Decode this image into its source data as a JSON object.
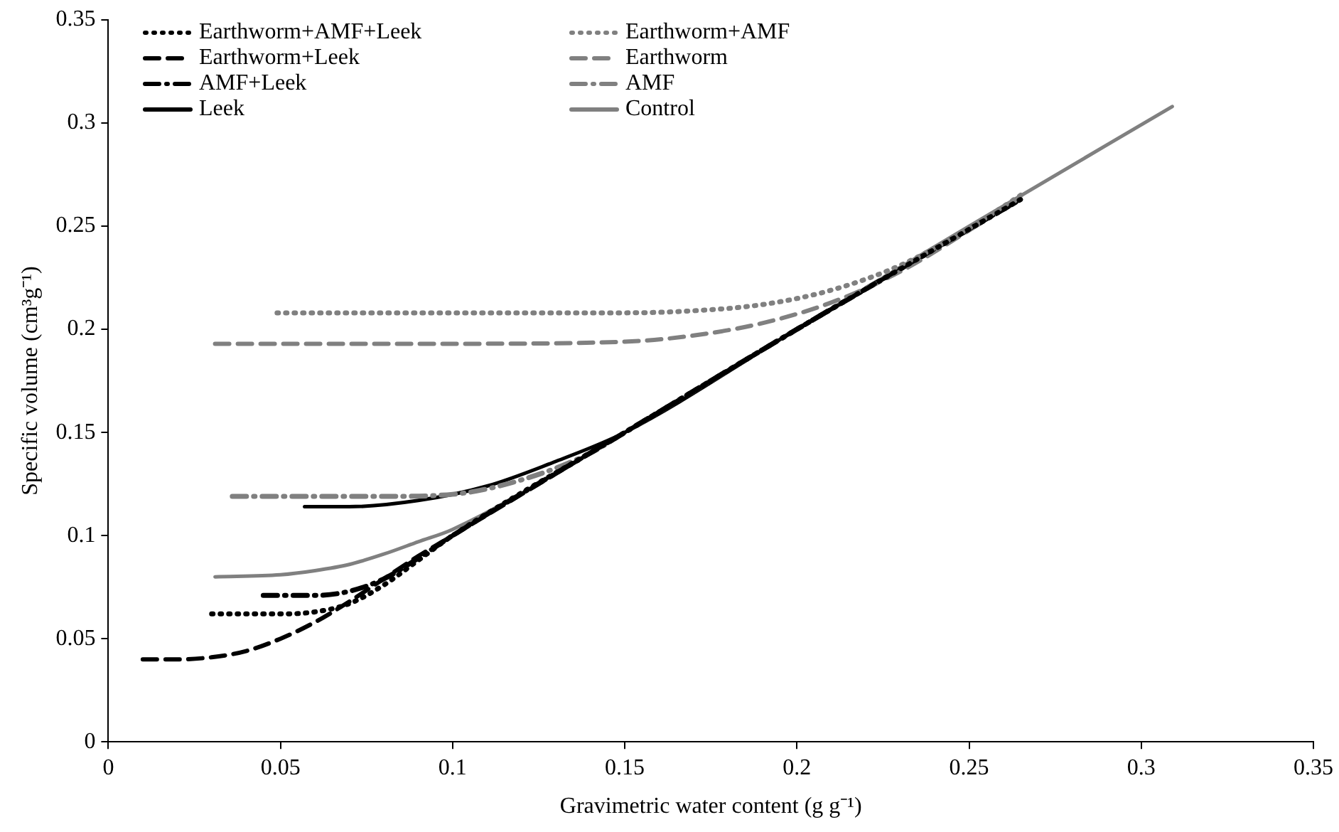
{
  "chart_data": {
    "type": "line",
    "xlabel": "Gravimetric water content (g g⁻¹)",
    "ylabel": "Specific volume (cm³g⁻¹)",
    "xlim": [
      0,
      0.35
    ],
    "ylim": [
      0,
      0.35
    ],
    "xticks": [
      0,
      0.05,
      0.1,
      0.15,
      0.2,
      0.25,
      0.3,
      0.35
    ],
    "yticks": [
      0,
      0.05,
      0.1,
      0.15,
      0.2,
      0.25,
      0.3,
      0.35
    ],
    "grid": false,
    "legend": "top left",
    "marker": "none",
    "series": [
      {
        "name": "Earthworm+AMF+Leek",
        "color": "#000000",
        "line_style": "dotted",
        "x": [
          0.03,
          0.05,
          0.06,
          0.07,
          0.08,
          0.09,
          0.1,
          0.15,
          0.2,
          0.265
        ],
        "values": [
          0.062,
          0.062,
          0.063,
          0.067,
          0.076,
          0.088,
          0.1,
          0.15,
          0.2,
          0.263
        ]
      },
      {
        "name": "Earthworm+AMF",
        "color": "#808080",
        "line_style": "dotted",
        "x": [
          0.049,
          0.1,
          0.15,
          0.17,
          0.19,
          0.21,
          0.23,
          0.25,
          0.265
        ],
        "values": [
          0.208,
          0.208,
          0.208,
          0.209,
          0.212,
          0.219,
          0.231,
          0.249,
          0.265
        ]
      },
      {
        "name": "Earthworm+Leek",
        "color": "#000000",
        "line_style": "dashed",
        "x": [
          0.01,
          0.02,
          0.03,
          0.04,
          0.05,
          0.06,
          0.07,
          0.08,
          0.09,
          0.1,
          0.15,
          0.2,
          0.265
        ],
        "values": [
          0.04,
          0.04,
          0.041,
          0.044,
          0.05,
          0.058,
          0.068,
          0.079,
          0.09,
          0.1,
          0.15,
          0.2,
          0.263
        ]
      },
      {
        "name": "Earthworm",
        "color": "#808080",
        "line_style": "dashed",
        "x": [
          0.031,
          0.1,
          0.15,
          0.17,
          0.19,
          0.21,
          0.23,
          0.25,
          0.265
        ],
        "values": [
          0.193,
          0.193,
          0.194,
          0.197,
          0.203,
          0.213,
          0.228,
          0.248,
          0.264
        ]
      },
      {
        "name": "AMF+Leek",
        "color": "#000000",
        "line_style": "dashdot",
        "x": [
          0.045,
          0.06,
          0.07,
          0.08,
          0.09,
          0.1,
          0.15,
          0.2,
          0.265
        ],
        "values": [
          0.071,
          0.071,
          0.073,
          0.079,
          0.089,
          0.1,
          0.15,
          0.2,
          0.263
        ]
      },
      {
        "name": "AMF",
        "color": "#808080",
        "line_style": "dashdot",
        "x": [
          0.036,
          0.08,
          0.1,
          0.12,
          0.14,
          0.15,
          0.2,
          0.265
        ],
        "values": [
          0.119,
          0.119,
          0.12,
          0.127,
          0.14,
          0.15,
          0.2,
          0.264
        ]
      },
      {
        "name": "Leek",
        "color": "#000000",
        "line_style": "solid",
        "x": [
          0.057,
          0.07,
          0.09,
          0.11,
          0.13,
          0.15,
          0.2,
          0.265
        ],
        "values": [
          0.114,
          0.114,
          0.117,
          0.124,
          0.136,
          0.15,
          0.2,
          0.263
        ]
      },
      {
        "name": "Control",
        "color": "#808080",
        "line_style": "solid",
        "x": [
          0.031,
          0.05,
          0.06,
          0.07,
          0.08,
          0.09,
          0.1,
          0.15,
          0.2,
          0.25,
          0.309
        ],
        "values": [
          0.08,
          0.081,
          0.083,
          0.086,
          0.091,
          0.097,
          0.103,
          0.15,
          0.2,
          0.25,
          0.308
        ]
      }
    ]
  }
}
